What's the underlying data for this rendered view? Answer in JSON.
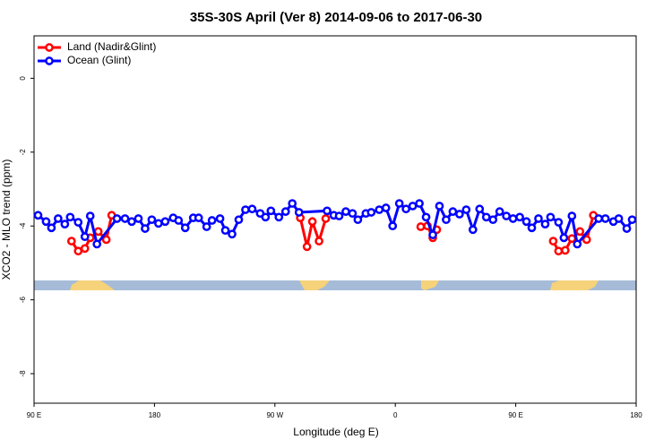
{
  "chart_data": {
    "type": "line",
    "title": "35S-30S April (Ver 8)   2014-09-06 to 2017-06-30",
    "x_label": "Longitude (deg E)",
    "y_label": "XCO2 - MLO trend (ppm)",
    "xlim": [
      90,
      540
    ],
    "ylim": [
      -8.8,
      1.15
    ],
    "xticks": [
      {
        "value": 90,
        "label": "90 E"
      },
      {
        "value": 180,
        "label": "180"
      },
      {
        "value": 270,
        "label": "90 W"
      },
      {
        "value": 360,
        "label": "0"
      },
      {
        "value": 450,
        "label": "90 E"
      },
      {
        "value": 540,
        "label": "180"
      }
    ],
    "yticks": [
      0,
      -2,
      -4,
      -6,
      -8
    ],
    "legend": "top-left",
    "series": [
      {
        "name": "Land (Nadir&Glint)",
        "color": "#ff0000",
        "x": [
          118,
          123,
          128,
          132,
          138,
          144,
          148,
          null,
          289,
          294,
          298,
          303,
          308,
          null,
          379,
          384,
          388,
          391,
          null,
          478,
          482,
          487,
          492,
          498,
          503,
          508
        ],
        "values": [
          -4.41,
          -4.68,
          -4.61,
          -4.32,
          -4.15,
          -4.37,
          -3.71,
          null,
          -3.78,
          -4.56,
          -3.88,
          -4.41,
          -3.8,
          null,
          -4.02,
          -4.0,
          -4.32,
          -4.1,
          null,
          -4.41,
          -4.68,
          -4.66,
          -4.34,
          -4.15,
          -4.37,
          -3.71
        ]
      },
      {
        "name": "Ocean (Glint)",
        "color": "#0000ff",
        "x": [
          93,
          99,
          103,
          108,
          113,
          117,
          123,
          128,
          132,
          137,
          152,
          158,
          163,
          168,
          173,
          178,
          183,
          188,
          194,
          198,
          203,
          209,
          213,
          219,
          223,
          229,
          233,
          238,
          243,
          248,
          253,
          259,
          263,
          267,
          273,
          278,
          283,
          288,
          309,
          314,
          318,
          323,
          328,
          332,
          338,
          342,
          348,
          353,
          358,
          363,
          368,
          373,
          378,
          383,
          388,
          393,
          398,
          403,
          408,
          413,
          418,
          423,
          428,
          433,
          438,
          443,
          448,
          453,
          458,
          462,
          467,
          472,
          476,
          482,
          486,
          492,
          496,
          512,
          517,
          523,
          527,
          533,
          537
        ],
        "values": [
          -3.71,
          -3.88,
          -4.05,
          -3.8,
          -3.95,
          -3.76,
          -3.9,
          -4.29,
          -3.73,
          -4.49,
          -3.8,
          -3.8,
          -3.88,
          -3.8,
          -4.07,
          -3.83,
          -3.93,
          -3.88,
          -3.78,
          -3.85,
          -4.05,
          -3.78,
          -3.78,
          -4.02,
          -3.85,
          -3.8,
          -4.12,
          -4.22,
          -3.83,
          -3.56,
          -3.54,
          -3.66,
          -3.76,
          -3.59,
          -3.76,
          -3.61,
          -3.39,
          -3.63,
          -3.59,
          -3.71,
          -3.73,
          -3.61,
          -3.66,
          -3.83,
          -3.66,
          -3.63,
          -3.56,
          -3.51,
          -4.0,
          -3.39,
          -3.54,
          -3.46,
          -3.39,
          -3.76,
          -4.24,
          -3.46,
          -3.83,
          -3.61,
          -3.68,
          -3.56,
          -4.1,
          -3.54,
          -3.76,
          -3.83,
          -3.61,
          -3.73,
          -3.8,
          -3.76,
          -3.88,
          -4.05,
          -3.8,
          -3.95,
          -3.76,
          -3.9,
          -4.32,
          -3.73,
          -4.49,
          -3.8,
          -3.8,
          -3.88,
          -3.8,
          -4.07,
          -3.83
        ]
      }
    ]
  }
}
